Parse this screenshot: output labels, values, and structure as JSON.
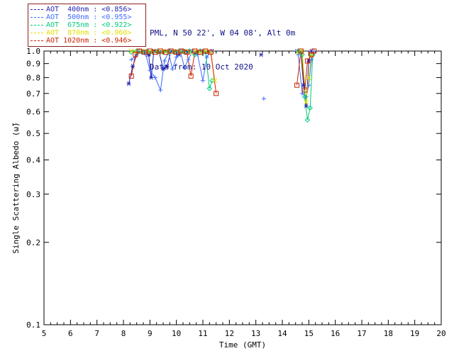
{
  "header": {
    "station_line": "PML, N 50 22', W 04 08', Alt 0m",
    "date_line": "Data from: 10 Oct 2020",
    "text_color": "#10108a"
  },
  "legend": {
    "border_color": "#8b2020",
    "entries": [
      {
        "label": "AOT  400nm",
        "value": "<0.856>",
        "color": "#2323b4",
        "marker": "asterisk"
      },
      {
        "label": "AOT  500nm",
        "value": "<0.955>",
        "color": "#3c6cff",
        "marker": "plus"
      },
      {
        "label": "AOT  675nm",
        "value": "<0.922>",
        "color": "#00cc7a",
        "marker": "diamond"
      },
      {
        "label": "AOT  870nm",
        "value": "<0.960>",
        "color": "#e1e100",
        "marker": "x"
      },
      {
        "label": "AOT 1020nm",
        "value": "<0.946>",
        "color": "#cc2200",
        "marker": "square"
      }
    ]
  },
  "chart_data": {
    "type": "line",
    "title": "",
    "xlabel": "Time (GMT)",
    "ylabel": "Single Scattering Albedo (ω̃)",
    "xlim": [
      5,
      20
    ],
    "ylim": [
      0.1,
      1.0
    ],
    "yscale": "log",
    "grid": false,
    "xticks": [
      5,
      6,
      7,
      8,
      9,
      10,
      11,
      12,
      13,
      14,
      15,
      16,
      17,
      18,
      19,
      20
    ],
    "yticks": [
      1.0,
      0.9,
      0.8,
      0.7,
      0.6,
      0.5,
      0.4,
      0.3,
      0.2,
      0.1
    ],
    "axis_color": "#000000",
    "series": [
      {
        "name": "AOT 400nm",
        "color": "#2323b4",
        "marker": "asterisk",
        "mean": 0.856,
        "points": [
          [
            8.2,
            0.76
          ],
          [
            8.35,
            0.88
          ],
          [
            8.55,
            1.0
          ],
          [
            8.75,
            0.99
          ],
          [
            8.95,
            0.97
          ],
          [
            9.05,
            0.8
          ],
          [
            9.15,
            1.0
          ],
          [
            9.35,
            0.99
          ],
          [
            9.5,
            0.86
          ],
          [
            9.65,
            0.88
          ],
          [
            9.8,
            1.0
          ],
          [
            9.95,
            0.99
          ],
          [
            10.1,
            0.97
          ],
          [
            10.25,
            1.0
          ],
          [
            10.4,
            0.99
          ],
          [
            10.55,
            1.0
          ],
          [
            10.75,
            0.99
          ],
          [
            10.95,
            1.0
          ],
          [
            11.15,
            0.99
          ],
          [
            11.35,
            1.0
          ],
          [
            13.2,
            0.97
          ],
          [
            14.55,
            1.0
          ],
          [
            14.7,
            0.99
          ],
          [
            14.8,
            0.75
          ],
          [
            14.9,
            0.63
          ],
          [
            15.0,
            0.92
          ],
          [
            15.1,
            1.0
          ]
        ]
      },
      {
        "name": "AOT 500nm",
        "color": "#3c6cff",
        "marker": "plus",
        "mean": 0.955,
        "points": [
          [
            8.3,
            0.93
          ],
          [
            8.5,
            0.97
          ],
          [
            8.7,
            1.0
          ],
          [
            8.85,
            0.97
          ],
          [
            9.0,
            0.85
          ],
          [
            9.2,
            0.8
          ],
          [
            9.4,
            0.72
          ],
          [
            9.55,
            0.92
          ],
          [
            9.7,
            0.99
          ],
          [
            9.85,
            0.86
          ],
          [
            10.0,
            0.95
          ],
          [
            10.15,
            1.0
          ],
          [
            10.3,
            0.87
          ],
          [
            10.45,
            0.93
          ],
          [
            10.6,
            1.0
          ],
          [
            10.8,
            0.97
          ],
          [
            11.0,
            0.78
          ],
          [
            11.15,
            0.95
          ],
          [
            11.3,
            1.0
          ],
          [
            13.3,
            0.67
          ],
          [
            14.6,
            0.97
          ],
          [
            14.75,
            0.7
          ],
          [
            14.9,
            0.68
          ],
          [
            15.0,
            0.75
          ],
          [
            15.1,
            0.93
          ],
          [
            15.2,
            1.0
          ]
        ]
      },
      {
        "name": "AOT 675nm",
        "color": "#00cc7a",
        "marker": "diamond",
        "mean": 0.922,
        "points": [
          [
            8.3,
            0.99
          ],
          [
            8.5,
            1.0
          ],
          [
            8.7,
            0.99
          ],
          [
            8.9,
            1.0
          ],
          [
            9.1,
            0.99
          ],
          [
            9.3,
            1.0
          ],
          [
            9.5,
            0.99
          ],
          [
            9.7,
            1.0
          ],
          [
            9.9,
            0.99
          ],
          [
            10.1,
            1.0
          ],
          [
            10.3,
            0.99
          ],
          [
            10.5,
            1.0
          ],
          [
            10.7,
            0.97
          ],
          [
            10.9,
            1.0
          ],
          [
            11.1,
            0.99
          ],
          [
            11.25,
            0.73
          ],
          [
            11.35,
            0.78
          ],
          [
            14.6,
            1.0
          ],
          [
            14.75,
            0.97
          ],
          [
            14.85,
            0.68
          ],
          [
            14.95,
            0.56
          ],
          [
            15.05,
            0.62
          ],
          [
            15.15,
            0.97
          ]
        ]
      },
      {
        "name": "AOT 870nm",
        "color": "#e1e100",
        "marker": "x",
        "mean": 0.96,
        "points": [
          [
            8.3,
            1.0
          ],
          [
            8.5,
            0.99
          ],
          [
            8.7,
            1.0
          ],
          [
            8.9,
            0.99
          ],
          [
            9.1,
            1.0
          ],
          [
            9.3,
            0.99
          ],
          [
            9.5,
            1.0
          ],
          [
            9.7,
            0.99
          ],
          [
            9.9,
            1.0
          ],
          [
            10.1,
            0.99
          ],
          [
            10.3,
            1.0
          ],
          [
            10.5,
            0.99
          ],
          [
            10.7,
            1.0
          ],
          [
            10.9,
            0.99
          ],
          [
            11.1,
            1.0
          ],
          [
            11.3,
            0.99
          ],
          [
            11.45,
            0.78
          ],
          [
            14.6,
            0.99
          ],
          [
            14.75,
            1.0
          ],
          [
            14.9,
            0.65
          ],
          [
            15.0,
            0.8
          ],
          [
            15.1,
            0.97
          ]
        ]
      },
      {
        "name": "AOT 1020nm",
        "color": "#cc2200",
        "marker": "square",
        "mean": 0.946,
        "points": [
          [
            8.3,
            0.81
          ],
          [
            8.45,
            0.97
          ],
          [
            8.6,
            1.0
          ],
          [
            8.8,
            0.99
          ],
          [
            9.0,
            1.0
          ],
          [
            9.2,
            0.99
          ],
          [
            9.4,
            1.0
          ],
          [
            9.6,
            0.99
          ],
          [
            9.8,
            1.0
          ],
          [
            10.0,
            0.99
          ],
          [
            10.2,
            1.0
          ],
          [
            10.4,
            0.99
          ],
          [
            10.55,
            0.81
          ],
          [
            10.7,
            1.0
          ],
          [
            10.9,
            0.99
          ],
          [
            11.1,
            1.0
          ],
          [
            11.3,
            0.99
          ],
          [
            11.5,
            0.7
          ],
          [
            14.55,
            0.75
          ],
          [
            14.7,
            1.0
          ],
          [
            14.85,
            0.72
          ],
          [
            14.95,
            0.92
          ],
          [
            15.1,
            0.97
          ],
          [
            15.2,
            1.0
          ]
        ]
      }
    ]
  }
}
